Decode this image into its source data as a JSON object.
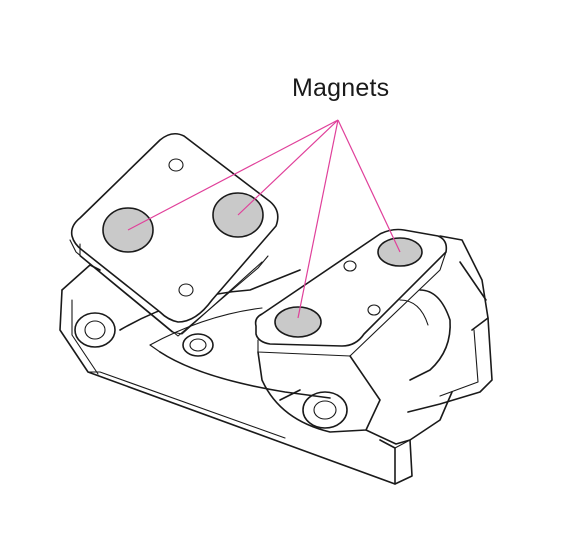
{
  "diagram": {
    "label": "Magnets",
    "colors": {
      "outline": "#1a1a1a",
      "magnet_fill": "#c9c9c9",
      "leader_line": "#e0409a",
      "background": "#ffffff"
    }
  }
}
